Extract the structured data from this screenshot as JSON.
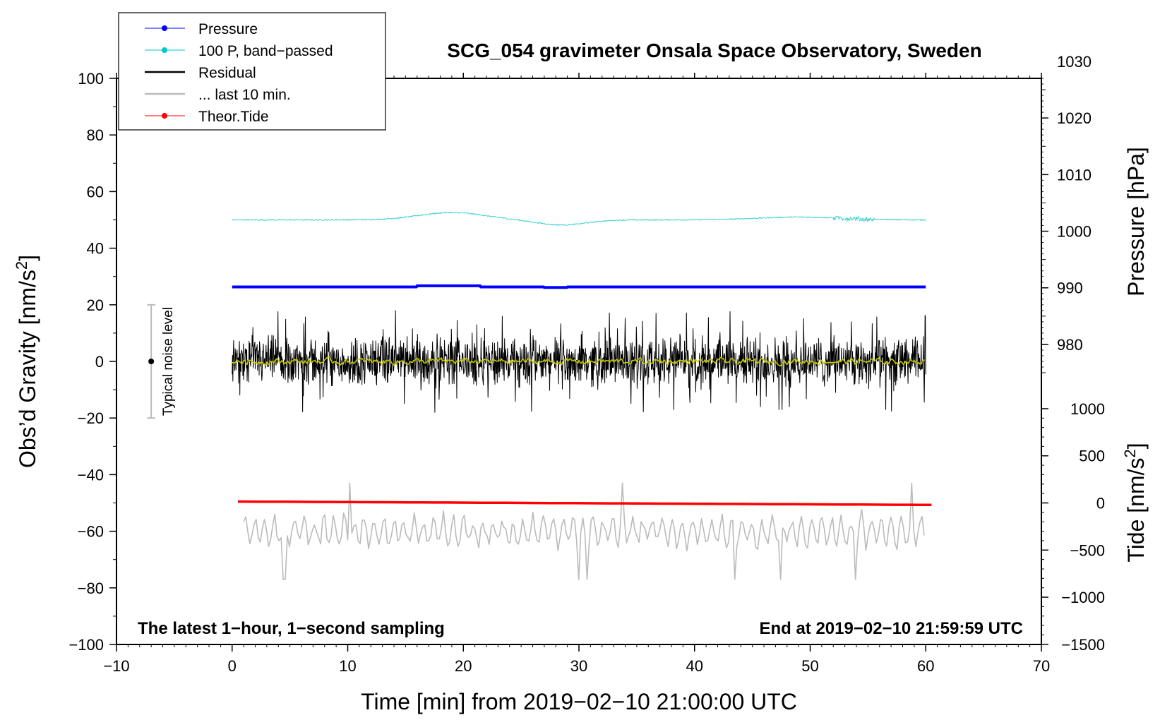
{
  "chart_data": {
    "type": "line",
    "title": "SCG_054 gravimeter Onsala Space Observatory, Sweden",
    "footer_left": "The latest 1−hour, 1−second sampling",
    "footer_right": "End at 2019−02−10 21:59:59 UTC",
    "xlabel": "Time [min] from 2019−02−10 21:00:00 UTC",
    "ylabel": "Obs’d Gravity [nm/s²]",
    "ylabel_main": "Obs’d Gravity [nm/s",
    "ylabel_sup": "2",
    "ylabel_end": "]",
    "y2label": "Pressure [hPa]",
    "y3label_main": "Tide [nm/s",
    "y3label_sup": "2",
    "y3label_end": "]",
    "xlim": [
      -10,
      70
    ],
    "ylim": [
      -100,
      100
    ],
    "x_ticks": [
      "−10",
      "0",
      "10",
      "20",
      "30",
      "40",
      "50",
      "60",
      "70"
    ],
    "x_tick_values": [
      -10,
      0,
      10,
      20,
      30,
      40,
      50,
      60,
      70
    ],
    "y_ticks": [
      "100",
      "80",
      "60",
      "40",
      "20",
      "0",
      "−20",
      "−40",
      "−60",
      "−80",
      "−100"
    ],
    "y_tick_values": [
      100,
      80,
      60,
      40,
      20,
      0,
      -20,
      -40,
      -60,
      -80,
      -100
    ],
    "pressure_axis": {
      "ticks": [
        "1030",
        "1020",
        "1010",
        "1000",
        "990",
        "980"
      ],
      "tick_values": [
        1030,
        1020,
        1010,
        1000,
        990,
        980
      ],
      "gravity_at_1000": 46,
      "gravity_per_hpa": 2
    },
    "tide_axis": {
      "ticks": [
        "1000",
        "500",
        "0",
        "−500",
        "−1000",
        "−1500"
      ],
      "tick_values": [
        1000,
        500,
        0,
        -500,
        -1000,
        -1500
      ],
      "gravity_at_0": -50,
      "gravity_per_unit": 0.0333
    },
    "noise_bar": {
      "label": "Typical noise level",
      "x": -7,
      "center": 0,
      "low": -20,
      "high": 20
    },
    "legend": {
      "position": "top-left",
      "entries": [
        {
          "label": "Pressure",
          "color": "#0000ff",
          "marker": true
        },
        {
          "label": "100 P, band−passed",
          "color": "#00c8c8",
          "marker": true
        },
        {
          "label": "Residual",
          "color": "#000000",
          "marker": false
        },
        {
          "label": "... last 10 min.",
          "color": "#bbbbbb",
          "marker": false
        },
        {
          "label": "Theor.Tide",
          "color": "#ff0000",
          "marker": true
        }
      ]
    },
    "series": [
      {
        "name": "Pressure",
        "color": "#0000ff",
        "x_range": [
          0,
          60
        ],
        "base": 26.3,
        "bump": 0.4,
        "noise": 0
      },
      {
        "name": "100 P, band−passed",
        "color": "#40d0d0",
        "x_range": [
          0,
          60
        ],
        "base": 50,
        "waves": [
          [
            19,
            2.6,
            4
          ],
          [
            28.5,
            -1.8,
            3
          ],
          [
            49,
            1,
            5
          ]
        ],
        "noise": 0.4
      },
      {
        "name": "Residual",
        "color": "#000000",
        "x_range": [
          0,
          60
        ],
        "base": 0,
        "noise": 7,
        "spikes": 18
      },
      {
        "name": "Residual smoothed",
        "color": "#c8c800",
        "x_range": [
          0,
          60
        ],
        "base": 0,
        "noise": 0.8
      },
      {
        "name": "... last 10 min.",
        "color": "#bbbbbb",
        "x_range": [
          1,
          60
        ],
        "base": -60,
        "noise": 5,
        "spikes": 17
      },
      {
        "name": "Theor.Tide",
        "color": "#ff0000",
        "x_range": [
          0.5,
          60.5
        ],
        "start": -49.5,
        "end": -50.7
      }
    ],
    "grid": false
  }
}
